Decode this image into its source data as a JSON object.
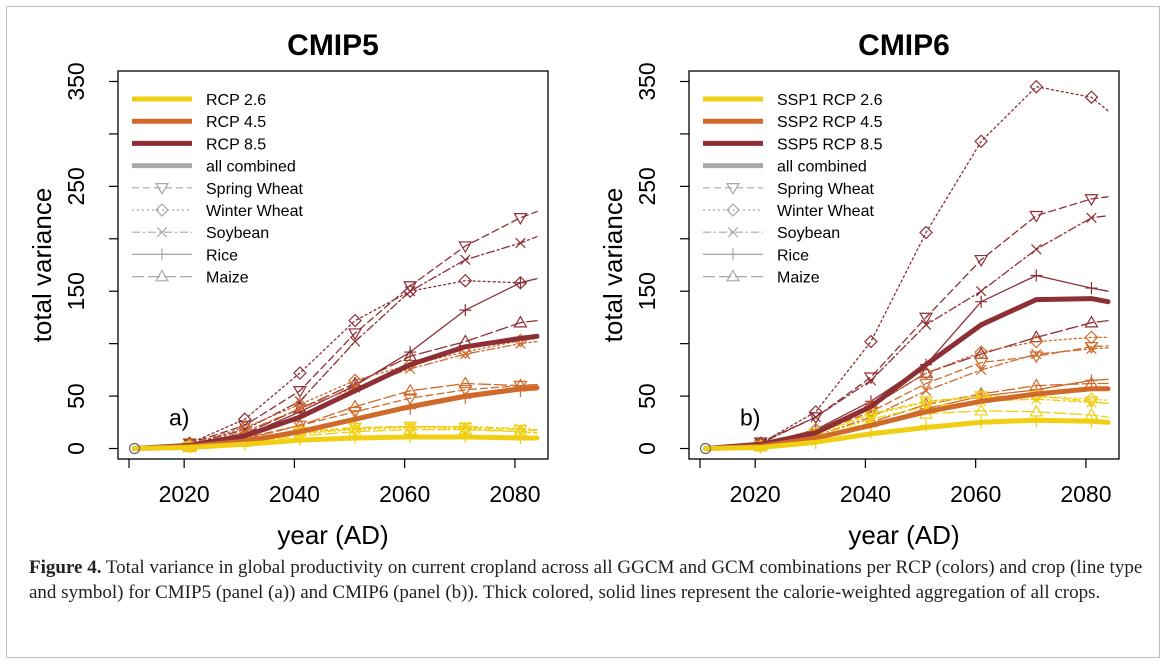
{
  "figure": {
    "caption_label": "Figure 4.",
    "caption_text": " Total variance in global productivity on current cropland across all GGCM and GCM combinations per RCP (colors) and crop (line type and symbol) for CMIP5 (panel (a)) and CMIP6 (panel (b)). Thick colored, solid lines represent the calorie-weighted aggregation of all crops."
  },
  "colors": {
    "low": "#f0cf13",
    "mid": "#cf6a2a",
    "high": "#8e2f36",
    "combined": "#a8a8a8"
  },
  "chart_data": [
    {
      "type": "line",
      "title": "CMIP5",
      "panel_letter": "a)",
      "xlabel": "year (AD)",
      "ylabel": "total variance",
      "xlim": [
        2008,
        2086
      ],
      "ylim": [
        -10,
        360
      ],
      "xticks": [
        2020,
        2040,
        2060,
        2080
      ],
      "yticks": [
        0,
        50,
        150,
        250,
        350
      ],
      "legend_position": "top-left",
      "legend": [
        {
          "label": "RCP 2.6",
          "style": "thick",
          "color": "low"
        },
        {
          "label": "RCP 4.5",
          "style": "thick",
          "color": "mid"
        },
        {
          "label": "RCP 8.5",
          "style": "thick",
          "color": "high"
        },
        {
          "label": "all combined",
          "style": "thick",
          "color": "combined"
        },
        {
          "label": "Spring Wheat",
          "style": "dash",
          "marker": "tri-down",
          "color": "combined"
        },
        {
          "label": "Winter Wheat",
          "style": "dot",
          "marker": "diamond",
          "color": "combined"
        },
        {
          "label": "Soybean",
          "style": "dashdot",
          "marker": "cross",
          "color": "combined"
        },
        {
          "label": "Rice",
          "style": "solid",
          "marker": "plus",
          "color": "combined"
        },
        {
          "label": "Maize",
          "style": "longdash",
          "marker": "tri-up",
          "color": "combined"
        }
      ],
      "x": [
        2011,
        2021,
        2031,
        2041,
        2051,
        2061,
        2071,
        2081
      ],
      "series": [
        {
          "name": "RCP 8.5",
          "rcp": "high",
          "crop": "combined",
          "values": [
            0,
            3,
            12,
            30,
            55,
            80,
            97,
            105
          ],
          "end": 107
        },
        {
          "name": "RCP 4.5",
          "rcp": "mid",
          "crop": "combined",
          "values": [
            0,
            2,
            7,
            16,
            28,
            40,
            50,
            57
          ],
          "end": 58
        },
        {
          "name": "RCP 2.6",
          "rcp": "low",
          "crop": "combined",
          "values": [
            0,
            1,
            4,
            8,
            10,
            11,
            11,
            10
          ],
          "end": 10
        },
        {
          "rcp": "high",
          "crop": "spring-wheat",
          "values": [
            0,
            5,
            22,
            55,
            110,
            155,
            193,
            220
          ],
          "end": 226
        },
        {
          "rcp": "high",
          "crop": "winter-wheat",
          "values": [
            0,
            5,
            28,
            72,
            122,
            150,
            160,
            158
          ],
          "end": 162
        },
        {
          "rcp": "high",
          "crop": "soybean",
          "values": [
            0,
            4,
            18,
            45,
            102,
            150,
            180,
            196
          ],
          "end": 202
        },
        {
          "rcp": "high",
          "crop": "rice",
          "values": [
            0,
            3,
            12,
            35,
            60,
            92,
            132,
            158
          ],
          "end": 162
        },
        {
          "rcp": "high",
          "crop": "maize",
          "values": [
            0,
            3,
            14,
            38,
            62,
            88,
            102,
            120
          ],
          "end": 122
        },
        {
          "rcp": "mid",
          "crop": "spring-wheat",
          "values": [
            0,
            2,
            10,
            22,
            35,
            48,
            56,
            60
          ],
          "end": 61
        },
        {
          "rcp": "mid",
          "crop": "winter-wheat",
          "values": [
            0,
            4,
            20,
            42,
            65,
            80,
            92,
            103
          ],
          "end": 105
        },
        {
          "rcp": "mid",
          "crop": "soybean",
          "values": [
            0,
            3,
            16,
            38,
            58,
            76,
            90,
            100
          ],
          "end": 102
        },
        {
          "rcp": "mid",
          "crop": "rice",
          "values": [
            0,
            2,
            8,
            18,
            28,
            38,
            48,
            55
          ],
          "end": 56
        },
        {
          "rcp": "mid",
          "crop": "maize",
          "values": [
            0,
            2,
            9,
            22,
            40,
            55,
            62,
            60
          ],
          "end": 61
        },
        {
          "rcp": "low",
          "crop": "spring-wheat",
          "values": [
            0,
            2,
            9,
            16,
            20,
            21,
            20,
            18
          ],
          "end": 17
        },
        {
          "rcp": "low",
          "crop": "winter-wheat",
          "values": [
            0,
            2,
            8,
            14,
            18,
            20,
            19,
            16
          ],
          "end": 15
        },
        {
          "rcp": "low",
          "crop": "soybean",
          "values": [
            0,
            2,
            8,
            15,
            19,
            21,
            21,
            19
          ],
          "end": 18
        },
        {
          "rcp": "low",
          "crop": "rice",
          "values": [
            0,
            1,
            4,
            8,
            10,
            11,
            11,
            10
          ],
          "end": 10
        },
        {
          "rcp": "low",
          "crop": "maize",
          "values": [
            0,
            1,
            6,
            12,
            16,
            18,
            18,
            16
          ],
          "end": 15
        }
      ]
    },
    {
      "type": "line",
      "title": "CMIP6",
      "panel_letter": "b)",
      "xlabel": "year (AD)",
      "ylabel": "total variance",
      "xlim": [
        2008,
        2086
      ],
      "ylim": [
        -10,
        360
      ],
      "xticks": [
        2020,
        2040,
        2060,
        2080
      ],
      "yticks": [
        0,
        50,
        150,
        250,
        350
      ],
      "legend_position": "top-left",
      "legend": [
        {
          "label": "SSP1 RCP 2.6",
          "style": "thick",
          "color": "low"
        },
        {
          "label": "SSP2 RCP 4.5",
          "style": "thick",
          "color": "mid"
        },
        {
          "label": "SSP5 RCP 8.5",
          "style": "thick",
          "color": "high"
        },
        {
          "label": "all combined",
          "style": "thick",
          "color": "combined"
        },
        {
          "label": "Spring Wheat",
          "style": "dash",
          "marker": "tri-down",
          "color": "combined"
        },
        {
          "label": "Winter Wheat",
          "style": "dot",
          "marker": "diamond",
          "color": "combined"
        },
        {
          "label": "Soybean",
          "style": "dashdot",
          "marker": "cross",
          "color": "combined"
        },
        {
          "label": "Rice",
          "style": "solid",
          "marker": "plus",
          "color": "combined"
        },
        {
          "label": "Maize",
          "style": "longdash",
          "marker": "tri-up",
          "color": "combined"
        }
      ],
      "x": [
        2011,
        2021,
        2031,
        2041,
        2051,
        2061,
        2071,
        2081
      ],
      "series": [
        {
          "name": "SSP5 RCP 8.5",
          "rcp": "high",
          "crop": "combined",
          "values": [
            0,
            4,
            15,
            40,
            80,
            118,
            142,
            143
          ],
          "end": 140
        },
        {
          "name": "SSP2 RCP 4.5",
          "rcp": "mid",
          "crop": "combined",
          "values": [
            0,
            2,
            10,
            22,
            35,
            45,
            52,
            57
          ],
          "end": 57
        },
        {
          "name": "SSP1 RCP 2.6",
          "rcp": "low",
          "crop": "combined",
          "values": [
            0,
            1,
            6,
            14,
            20,
            25,
            27,
            26
          ],
          "end": 25
        },
        {
          "rcp": "high",
          "crop": "spring-wheat",
          "values": [
            0,
            6,
            30,
            68,
            125,
            180,
            222,
            238
          ],
          "end": 240
        },
        {
          "rcp": "high",
          "crop": "winter-wheat",
          "values": [
            0,
            5,
            35,
            102,
            206,
            293,
            345,
            335
          ],
          "end": 322
        },
        {
          "rcp": "high",
          "crop": "soybean",
          "values": [
            0,
            5,
            30,
            65,
            118,
            150,
            190,
            220
          ],
          "end": 222
        },
        {
          "rcp": "high",
          "crop": "rice",
          "values": [
            0,
            4,
            18,
            45,
            80,
            140,
            165,
            153
          ],
          "end": 150
        },
        {
          "rcp": "high",
          "crop": "maize",
          "values": [
            0,
            4,
            15,
            40,
            72,
            90,
            106,
            120
          ],
          "end": 122
        },
        {
          "rcp": "mid",
          "crop": "spring-wheat",
          "values": [
            0,
            3,
            15,
            35,
            62,
            82,
            88,
            97
          ],
          "end": 98
        },
        {
          "rcp": "mid",
          "crop": "winter-wheat",
          "values": [
            0,
            3,
            18,
            40,
            72,
            92,
            102,
            106
          ],
          "end": 106
        },
        {
          "rcp": "mid",
          "crop": "soybean",
          "values": [
            0,
            2,
            12,
            30,
            55,
            75,
            90,
            95
          ],
          "end": 96
        },
        {
          "rcp": "mid",
          "crop": "rice",
          "values": [
            0,
            2,
            9,
            22,
            38,
            50,
            56,
            65
          ],
          "end": 66
        },
        {
          "rcp": "mid",
          "crop": "maize",
          "values": [
            0,
            2,
            10,
            25,
            42,
            52,
            60,
            62
          ],
          "end": 62
        },
        {
          "rcp": "low",
          "crop": "spring-wheat",
          "values": [
            0,
            2,
            15,
            33,
            45,
            50,
            50,
            45
          ],
          "end": 43
        },
        {
          "rcp": "low",
          "crop": "winter-wheat",
          "values": [
            0,
            2,
            14,
            32,
            44,
            49,
            50,
            47
          ],
          "end": 46
        },
        {
          "rcp": "low",
          "crop": "soybean",
          "values": [
            0,
            2,
            12,
            28,
            40,
            45,
            47,
            44
          ],
          "end": 43
        },
        {
          "rcp": "low",
          "crop": "rice",
          "values": [
            0,
            1,
            5,
            15,
            22,
            25,
            26,
            25
          ],
          "end": 24
        },
        {
          "rcp": "low",
          "crop": "maize",
          "values": [
            0,
            2,
            10,
            25,
            33,
            36,
            35,
            32
          ],
          "end": 30
        }
      ]
    }
  ]
}
